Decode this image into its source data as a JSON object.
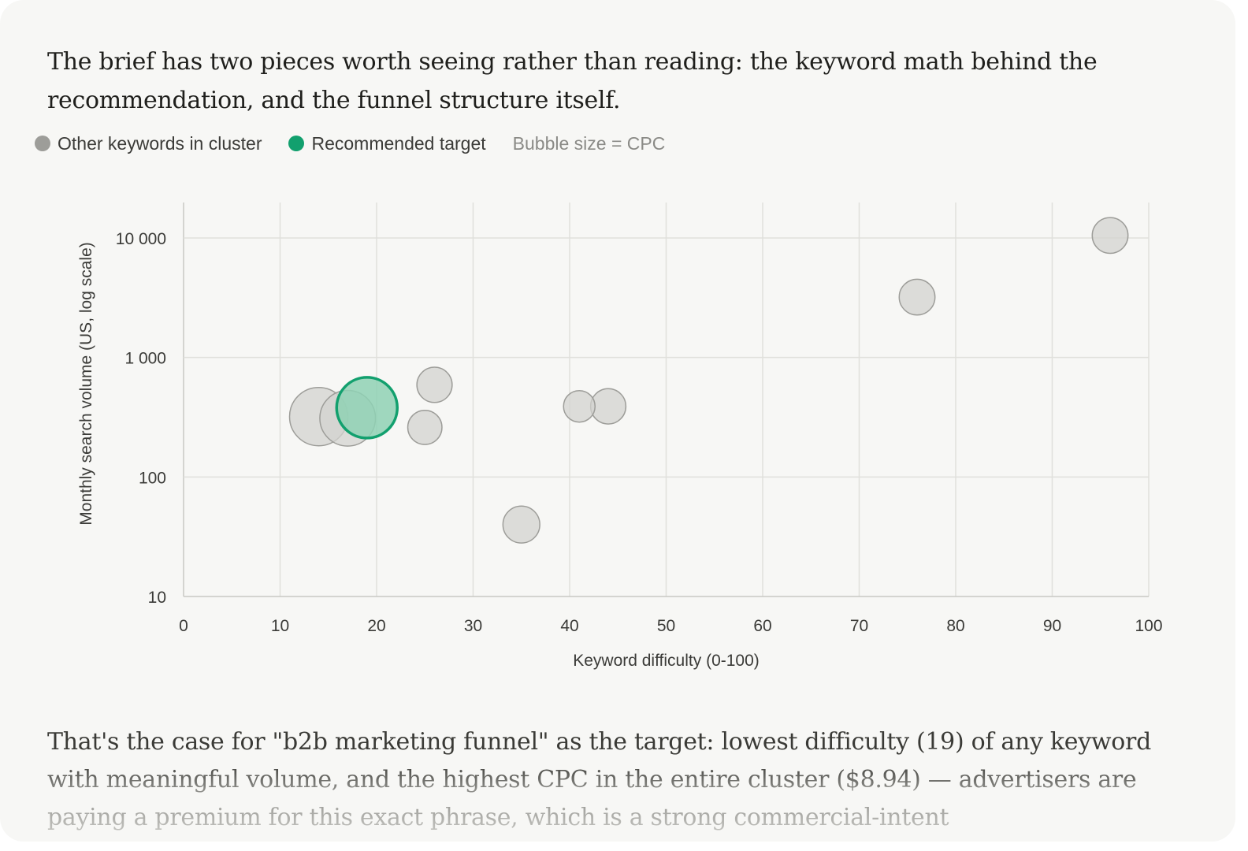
{
  "intro_text": "The brief has two pieces worth seeing rather than reading: the keyword math behind the recommendation, and the funnel structure itself.",
  "legend": {
    "other_label": "Other keywords in cluster",
    "target_label": "Recommended target",
    "size_note": "Bubble size = CPC"
  },
  "colors": {
    "other_fill": "#d3d3cf",
    "other_stroke": "#9d9d99",
    "other_swatch": "#9d9d99",
    "target_fill": "#8fd1b4",
    "target_stroke": "#12a06e",
    "target_swatch": "#12a06e",
    "grid": "#e0e0dc",
    "axis": "#c8c8c4"
  },
  "chart_data": {
    "type": "scatter",
    "xlabel": "Keyword difficulty (0-100)",
    "ylabel": "Monthly search volume (US, log scale)",
    "xlim": [
      0,
      100
    ],
    "ylim": [
      10,
      20000
    ],
    "y_scale": "log",
    "x_ticks": [
      0,
      10,
      20,
      30,
      40,
      50,
      60,
      70,
      80,
      90,
      100
    ],
    "y_ticks": [
      10,
      100,
      1000,
      10000
    ],
    "y_tick_labels": [
      "10",
      "100",
      "1 000",
      "10 000"
    ],
    "grid": true,
    "legend_position": "top-left",
    "series": [
      {
        "name": "Other keywords in cluster",
        "points": [
          {
            "x": 14,
            "y": 320,
            "cpc": 8.5
          },
          {
            "x": 17,
            "y": 310,
            "cpc": 8.0
          },
          {
            "x": 25,
            "y": 260,
            "cpc": 4.0
          },
          {
            "x": 26,
            "y": 590,
            "cpc": 4.2
          },
          {
            "x": 35,
            "y": 40,
            "cpc": 4.5
          },
          {
            "x": 41,
            "y": 390,
            "cpc": 3.5
          },
          {
            "x": 44,
            "y": 390,
            "cpc": 4.2
          },
          {
            "x": 76,
            "y": 3200,
            "cpc": 4.3
          },
          {
            "x": 96,
            "y": 10500,
            "cpc": 4.3
          }
        ]
      },
      {
        "name": "Recommended target",
        "points": [
          {
            "x": 19,
            "y": 380,
            "cpc": 8.94
          }
        ]
      }
    ]
  },
  "outro_text": "That's the case for \"b2b marketing funnel\" as the target: lowest difficulty (19) of any keyword with meaningful volume, and the highest CPC in the entire cluster ($8.94) — advertisers are paying a premium for this exact phrase, which is a strong commercial-intent"
}
